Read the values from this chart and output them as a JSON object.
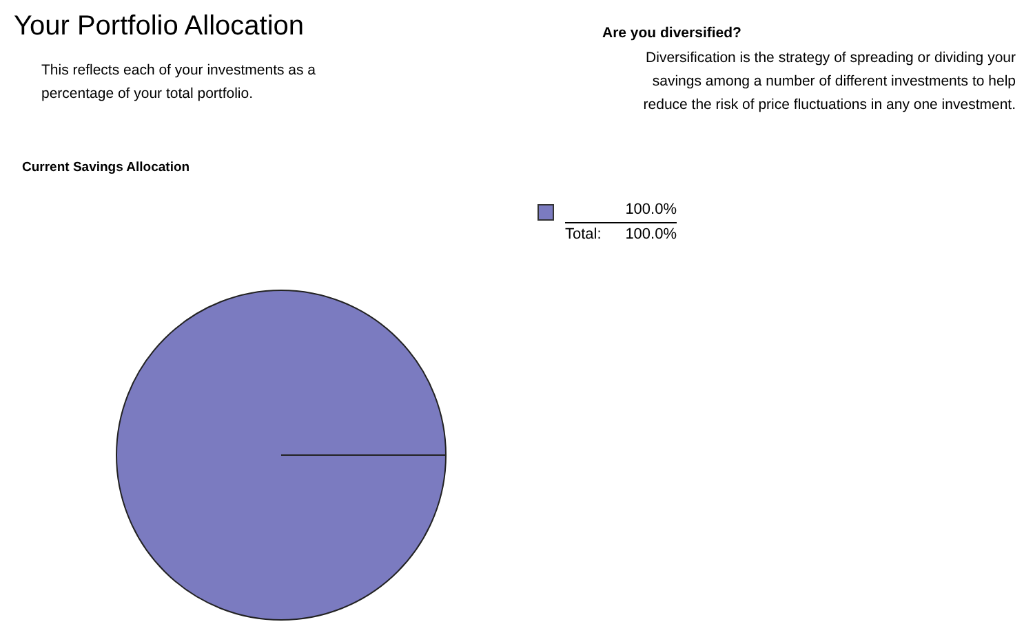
{
  "chart_data": {
    "type": "pie",
    "title": "Your Portfolio Allocation",
    "subtitle": "This reflects each of your investments as a percentage of your total portfolio.",
    "annotations": [
      "Are you diversified?",
      "Diversification is the strategy of spreading or dividing your savings among a number of different investments to help reduce the risk of price fluctuations in any one investment.",
      "Current Savings Allocation",
      "100.0%",
      "Total:"
    ],
    "categories": [
      null
    ],
    "values": [
      100
    ],
    "colors": [
      "#7b7bc0"
    ],
    "totals": [
      "100.0%"
    ]
  }
}
